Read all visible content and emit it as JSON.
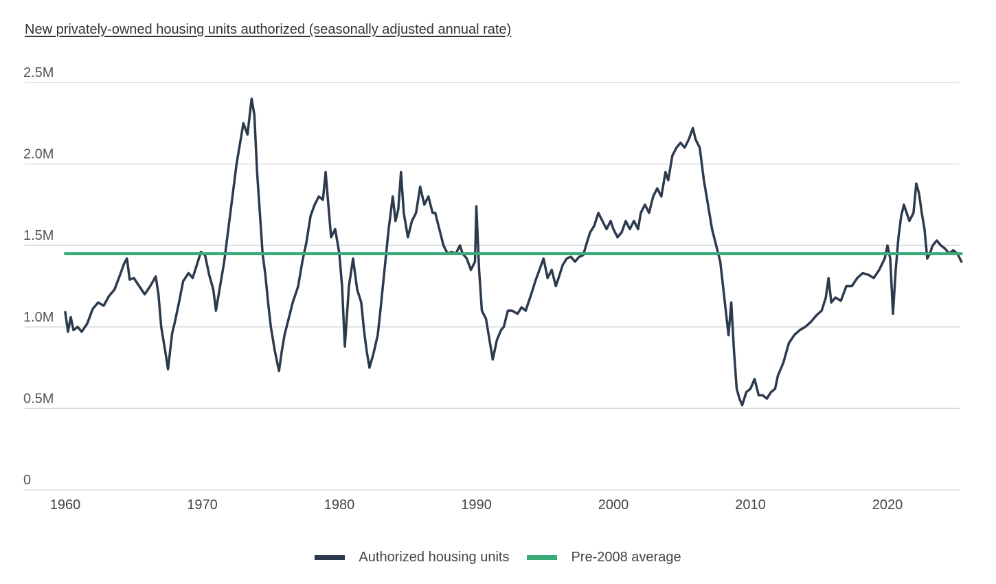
{
  "chart_data": {
    "type": "line",
    "title": "New privately-owned housing units authorized (seasonally adjusted annual rate)",
    "ylim": [
      0,
      2500000
    ],
    "y_ticks": [
      {
        "value": 0,
        "label": "0"
      },
      {
        "value": 500000,
        "label": "0.5M"
      },
      {
        "value": 1000000,
        "label": "1.0M"
      },
      {
        "value": 1500000,
        "label": "1.5M"
      },
      {
        "value": 2000000,
        "label": "2.0M"
      },
      {
        "value": 2500000,
        "label": "2.5M"
      }
    ],
    "xlim": [
      1960,
      2025.5
    ],
    "x_ticks": [
      1960,
      1970,
      1980,
      1990,
      2000,
      2010,
      2020
    ],
    "grid": "horizontal",
    "legend_position": "bottom-center",
    "series": [
      {
        "name": "Authorized housing units",
        "color": "#2c3a4d",
        "points": [
          [
            1960.0,
            1090000
          ],
          [
            1960.2,
            970000
          ],
          [
            1960.4,
            1060000
          ],
          [
            1960.6,
            980000
          ],
          [
            1960.9,
            1000000
          ],
          [
            1961.2,
            970000
          ],
          [
            1961.6,
            1020000
          ],
          [
            1962.0,
            1110000
          ],
          [
            1962.4,
            1150000
          ],
          [
            1962.8,
            1130000
          ],
          [
            1963.2,
            1190000
          ],
          [
            1963.6,
            1230000
          ],
          [
            1964.0,
            1320000
          ],
          [
            1964.3,
            1390000
          ],
          [
            1964.5,
            1420000
          ],
          [
            1964.7,
            1290000
          ],
          [
            1965.0,
            1300000
          ],
          [
            1965.4,
            1250000
          ],
          [
            1965.8,
            1200000
          ],
          [
            1966.2,
            1250000
          ],
          [
            1966.6,
            1310000
          ],
          [
            1966.8,
            1200000
          ],
          [
            1967.0,
            1000000
          ],
          [
            1967.3,
            850000
          ],
          [
            1967.5,
            740000
          ],
          [
            1967.8,
            960000
          ],
          [
            1968.0,
            1030000
          ],
          [
            1968.3,
            1150000
          ],
          [
            1968.6,
            1280000
          ],
          [
            1969.0,
            1330000
          ],
          [
            1969.3,
            1300000
          ],
          [
            1969.6,
            1380000
          ],
          [
            1969.9,
            1460000
          ],
          [
            1970.2,
            1440000
          ],
          [
            1970.5,
            1320000
          ],
          [
            1970.8,
            1230000
          ],
          [
            1971.0,
            1100000
          ],
          [
            1971.3,
            1250000
          ],
          [
            1971.6,
            1400000
          ],
          [
            1971.9,
            1600000
          ],
          [
            1972.2,
            1800000
          ],
          [
            1972.5,
            2000000
          ],
          [
            1972.8,
            2150000
          ],
          [
            1973.0,
            2250000
          ],
          [
            1973.3,
            2180000
          ],
          [
            1973.6,
            2400000
          ],
          [
            1973.8,
            2300000
          ],
          [
            1974.0,
            1950000
          ],
          [
            1974.2,
            1700000
          ],
          [
            1974.4,
            1450000
          ],
          [
            1974.6,
            1320000
          ],
          [
            1974.8,
            1150000
          ],
          [
            1975.0,
            1000000
          ],
          [
            1975.3,
            850000
          ],
          [
            1975.6,
            730000
          ],
          [
            1975.8,
            850000
          ],
          [
            1976.0,
            950000
          ],
          [
            1976.3,
            1050000
          ],
          [
            1976.6,
            1150000
          ],
          [
            1977.0,
            1250000
          ],
          [
            1977.3,
            1400000
          ],
          [
            1977.6,
            1520000
          ],
          [
            1977.9,
            1680000
          ],
          [
            1978.2,
            1750000
          ],
          [
            1978.5,
            1800000
          ],
          [
            1978.8,
            1780000
          ],
          [
            1979.0,
            1950000
          ],
          [
            1979.2,
            1750000
          ],
          [
            1979.4,
            1550000
          ],
          [
            1979.7,
            1600000
          ],
          [
            1980.0,
            1450000
          ],
          [
            1980.2,
            1250000
          ],
          [
            1980.4,
            880000
          ],
          [
            1980.7,
            1250000
          ],
          [
            1981.0,
            1420000
          ],
          [
            1981.3,
            1230000
          ],
          [
            1981.6,
            1150000
          ],
          [
            1981.8,
            980000
          ],
          [
            1982.0,
            850000
          ],
          [
            1982.2,
            750000
          ],
          [
            1982.5,
            840000
          ],
          [
            1982.8,
            950000
          ],
          [
            1983.0,
            1100000
          ],
          [
            1983.3,
            1350000
          ],
          [
            1983.6,
            1600000
          ],
          [
            1983.9,
            1800000
          ],
          [
            1984.1,
            1650000
          ],
          [
            1984.3,
            1720000
          ],
          [
            1984.5,
            1950000
          ],
          [
            1984.7,
            1700000
          ],
          [
            1985.0,
            1550000
          ],
          [
            1985.3,
            1650000
          ],
          [
            1985.6,
            1700000
          ],
          [
            1985.9,
            1860000
          ],
          [
            1986.2,
            1750000
          ],
          [
            1986.5,
            1800000
          ],
          [
            1986.8,
            1700000
          ],
          [
            1987.0,
            1700000
          ],
          [
            1987.3,
            1600000
          ],
          [
            1987.6,
            1500000
          ],
          [
            1987.9,
            1450000
          ],
          [
            1988.2,
            1460000
          ],
          [
            1988.5,
            1450000
          ],
          [
            1988.8,
            1500000
          ],
          [
            1989.0,
            1450000
          ],
          [
            1989.3,
            1420000
          ],
          [
            1989.6,
            1350000
          ],
          [
            1989.9,
            1400000
          ],
          [
            1990.0,
            1740000
          ],
          [
            1990.2,
            1350000
          ],
          [
            1990.4,
            1100000
          ],
          [
            1990.7,
            1050000
          ],
          [
            1991.0,
            900000
          ],
          [
            1991.2,
            800000
          ],
          [
            1991.5,
            920000
          ],
          [
            1991.8,
            980000
          ],
          [
            1992.0,
            1000000
          ],
          [
            1992.3,
            1100000
          ],
          [
            1992.6,
            1100000
          ],
          [
            1993.0,
            1080000
          ],
          [
            1993.3,
            1120000
          ],
          [
            1993.6,
            1100000
          ],
          [
            1994.0,
            1200000
          ],
          [
            1994.3,
            1280000
          ],
          [
            1994.6,
            1350000
          ],
          [
            1994.9,
            1420000
          ],
          [
            1995.2,
            1300000
          ],
          [
            1995.5,
            1350000
          ],
          [
            1995.8,
            1250000
          ],
          [
            1996.0,
            1300000
          ],
          [
            1996.3,
            1380000
          ],
          [
            1996.6,
            1420000
          ],
          [
            1996.9,
            1430000
          ],
          [
            1997.2,
            1400000
          ],
          [
            1997.5,
            1430000
          ],
          [
            1997.8,
            1440000
          ],
          [
            1998.0,
            1500000
          ],
          [
            1998.3,
            1580000
          ],
          [
            1998.6,
            1620000
          ],
          [
            1998.9,
            1700000
          ],
          [
            1999.2,
            1650000
          ],
          [
            1999.5,
            1600000
          ],
          [
            1999.8,
            1650000
          ],
          [
            2000.0,
            1600000
          ],
          [
            2000.3,
            1550000
          ],
          [
            2000.6,
            1580000
          ],
          [
            2000.9,
            1650000
          ],
          [
            2001.2,
            1600000
          ],
          [
            2001.5,
            1650000
          ],
          [
            2001.8,
            1600000
          ],
          [
            2002.0,
            1700000
          ],
          [
            2002.3,
            1750000
          ],
          [
            2002.6,
            1700000
          ],
          [
            2002.9,
            1800000
          ],
          [
            2003.2,
            1850000
          ],
          [
            2003.5,
            1800000
          ],
          [
            2003.8,
            1950000
          ],
          [
            2004.0,
            1900000
          ],
          [
            2004.3,
            2050000
          ],
          [
            2004.6,
            2100000
          ],
          [
            2004.9,
            2130000
          ],
          [
            2005.2,
            2100000
          ],
          [
            2005.5,
            2150000
          ],
          [
            2005.8,
            2220000
          ],
          [
            2006.0,
            2150000
          ],
          [
            2006.3,
            2100000
          ],
          [
            2006.6,
            1900000
          ],
          [
            2006.9,
            1750000
          ],
          [
            2007.2,
            1600000
          ],
          [
            2007.5,
            1500000
          ],
          [
            2007.8,
            1400000
          ],
          [
            2008.0,
            1250000
          ],
          [
            2008.2,
            1100000
          ],
          [
            2008.4,
            950000
          ],
          [
            2008.6,
            1150000
          ],
          [
            2008.8,
            850000
          ],
          [
            2009.0,
            620000
          ],
          [
            2009.2,
            560000
          ],
          [
            2009.4,
            520000
          ],
          [
            2009.7,
            600000
          ],
          [
            2010.0,
            620000
          ],
          [
            2010.3,
            680000
          ],
          [
            2010.6,
            580000
          ],
          [
            2010.9,
            580000
          ],
          [
            2011.2,
            560000
          ],
          [
            2011.5,
            600000
          ],
          [
            2011.8,
            620000
          ],
          [
            2012.0,
            700000
          ],
          [
            2012.4,
            780000
          ],
          [
            2012.8,
            900000
          ],
          [
            2013.2,
            950000
          ],
          [
            2013.6,
            980000
          ],
          [
            2014.0,
            1000000
          ],
          [
            2014.4,
            1030000
          ],
          [
            2014.8,
            1070000
          ],
          [
            2015.2,
            1100000
          ],
          [
            2015.5,
            1180000
          ],
          [
            2015.7,
            1300000
          ],
          [
            2015.9,
            1150000
          ],
          [
            2016.2,
            1180000
          ],
          [
            2016.6,
            1160000
          ],
          [
            2017.0,
            1250000
          ],
          [
            2017.4,
            1250000
          ],
          [
            2017.8,
            1300000
          ],
          [
            2018.2,
            1330000
          ],
          [
            2018.6,
            1320000
          ],
          [
            2019.0,
            1300000
          ],
          [
            2019.4,
            1350000
          ],
          [
            2019.8,
            1420000
          ],
          [
            2020.0,
            1500000
          ],
          [
            2020.2,
            1420000
          ],
          [
            2020.4,
            1080000
          ],
          [
            2020.6,
            1350000
          ],
          [
            2020.8,
            1550000
          ],
          [
            2021.0,
            1680000
          ],
          [
            2021.2,
            1750000
          ],
          [
            2021.4,
            1700000
          ],
          [
            2021.6,
            1650000
          ],
          [
            2021.9,
            1700000
          ],
          [
            2022.1,
            1880000
          ],
          [
            2022.3,
            1820000
          ],
          [
            2022.5,
            1700000
          ],
          [
            2022.7,
            1600000
          ],
          [
            2022.9,
            1420000
          ],
          [
            2023.1,
            1450000
          ],
          [
            2023.3,
            1500000
          ],
          [
            2023.6,
            1530000
          ],
          [
            2023.9,
            1500000
          ],
          [
            2024.2,
            1480000
          ],
          [
            2024.5,
            1450000
          ],
          [
            2024.8,
            1470000
          ],
          [
            2025.1,
            1450000
          ],
          [
            2025.4,
            1400000
          ]
        ]
      },
      {
        "name": "Pre-2008 average",
        "color": "#3aaa78",
        "points": [
          [
            1960.0,
            1450000
          ],
          [
            2025.4,
            1450000
          ]
        ]
      }
    ]
  }
}
